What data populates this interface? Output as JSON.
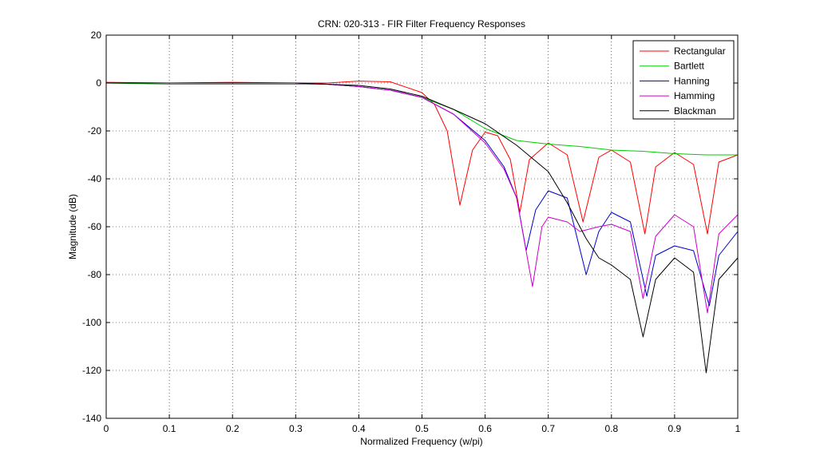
{
  "chart_data": {
    "type": "line",
    "title": "CRN: 020-313 - FIR Filter Frequency Responses",
    "xlabel": "Normalized Frequency (w/pi)",
    "ylabel": "Magnitude (dB)",
    "xlim": [
      0,
      1
    ],
    "ylim": [
      -140,
      20
    ],
    "xticks": [
      0,
      0.1,
      0.2,
      0.3,
      0.4,
      0.5,
      0.6,
      0.7,
      0.8,
      0.9,
      1
    ],
    "yticks": [
      20,
      0,
      -20,
      -40,
      -60,
      -80,
      -100,
      -120,
      -140
    ],
    "xtick_labels": [
      "0",
      "0.1",
      "0.2",
      "0.3",
      "0.4",
      "0.5",
      "0.6",
      "0.7",
      "0.8",
      "0.9",
      "1"
    ],
    "ytick_labels": [
      "20",
      "0",
      "-20",
      "-40",
      "-60",
      "-80",
      "-100",
      "-120",
      "-140"
    ],
    "grid": true,
    "legend_position": "top-right",
    "series": [
      {
        "name": "Rectangular",
        "color": "#ff0000",
        "points": [
          [
            0,
            0.3
          ],
          [
            0.1,
            0
          ],
          [
            0.2,
            0.3
          ],
          [
            0.3,
            0
          ],
          [
            0.35,
            0
          ],
          [
            0.4,
            0.8
          ],
          [
            0.45,
            0.5
          ],
          [
            0.5,
            -4
          ],
          [
            0.52,
            -9
          ],
          [
            0.54,
            -20
          ],
          [
            0.56,
            -51
          ],
          [
            0.58,
            -28
          ],
          [
            0.6,
            -20.5
          ],
          [
            0.62,
            -22
          ],
          [
            0.64,
            -32
          ],
          [
            0.655,
            -54
          ],
          [
            0.67,
            -32
          ],
          [
            0.7,
            -25
          ],
          [
            0.73,
            -30
          ],
          [
            0.755,
            -58
          ],
          [
            0.78,
            -31
          ],
          [
            0.8,
            -28
          ],
          [
            0.83,
            -33
          ],
          [
            0.853,
            -63
          ],
          [
            0.87,
            -35
          ],
          [
            0.9,
            -29
          ],
          [
            0.93,
            -34
          ],
          [
            0.952,
            -63
          ],
          [
            0.97,
            -33
          ],
          [
            1,
            -30
          ]
        ]
      },
      {
        "name": "Bartlett",
        "color": "#00cc00",
        "points": [
          [
            0,
            0
          ],
          [
            0.1,
            -0.5
          ],
          [
            0.2,
            -0.5
          ],
          [
            0.3,
            -0.5
          ],
          [
            0.35,
            -0.5
          ],
          [
            0.4,
            -1.5
          ],
          [
            0.45,
            -3
          ],
          [
            0.5,
            -6
          ],
          [
            0.55,
            -11
          ],
          [
            0.6,
            -19
          ],
          [
            0.65,
            -24
          ],
          [
            0.7,
            -25.5
          ],
          [
            0.75,
            -26.5
          ],
          [
            0.8,
            -28
          ],
          [
            0.85,
            -28.5
          ],
          [
            0.9,
            -29.5
          ],
          [
            0.95,
            -30
          ],
          [
            1,
            -30
          ]
        ]
      },
      {
        "name": "Hanning",
        "color": "#0000cc",
        "points": [
          [
            0,
            0
          ],
          [
            0.1,
            0
          ],
          [
            0.3,
            0
          ],
          [
            0.35,
            -0.5
          ],
          [
            0.4,
            -1.5
          ],
          [
            0.45,
            -3
          ],
          [
            0.5,
            -6
          ],
          [
            0.55,
            -13
          ],
          [
            0.6,
            -24
          ],
          [
            0.63,
            -35
          ],
          [
            0.65,
            -48
          ],
          [
            0.665,
            -70
          ],
          [
            0.68,
            -53
          ],
          [
            0.7,
            -45
          ],
          [
            0.73,
            -48
          ],
          [
            0.76,
            -80
          ],
          [
            0.78,
            -62
          ],
          [
            0.8,
            -54
          ],
          [
            0.83,
            -58
          ],
          [
            0.856,
            -89
          ],
          [
            0.87,
            -72
          ],
          [
            0.9,
            -68
          ],
          [
            0.93,
            -70
          ],
          [
            0.955,
            -93
          ],
          [
            0.97,
            -72
          ],
          [
            1,
            -62
          ]
        ]
      },
      {
        "name": "Hamming",
        "color": "#cc00cc",
        "points": [
          [
            0,
            0
          ],
          [
            0.1,
            0
          ],
          [
            0.3,
            0
          ],
          [
            0.35,
            -0.5
          ],
          [
            0.4,
            -1.5
          ],
          [
            0.45,
            -3
          ],
          [
            0.5,
            -6
          ],
          [
            0.55,
            -13
          ],
          [
            0.6,
            -25
          ],
          [
            0.63,
            -36
          ],
          [
            0.65,
            -48
          ],
          [
            0.675,
            -85
          ],
          [
            0.69,
            -60
          ],
          [
            0.7,
            -56
          ],
          [
            0.73,
            -58
          ],
          [
            0.75,
            -62
          ],
          [
            0.78,
            -60
          ],
          [
            0.8,
            -59
          ],
          [
            0.83,
            -62
          ],
          [
            0.85,
            -90
          ],
          [
            0.87,
            -64
          ],
          [
            0.9,
            -55
          ],
          [
            0.93,
            -60
          ],
          [
            0.952,
            -96
          ],
          [
            0.97,
            -63
          ],
          [
            1,
            -55
          ]
        ]
      },
      {
        "name": "Blackman",
        "color": "#000000",
        "points": [
          [
            0,
            0
          ],
          [
            0.1,
            0
          ],
          [
            0.3,
            0
          ],
          [
            0.35,
            -0.5
          ],
          [
            0.4,
            -1
          ],
          [
            0.45,
            -2.5
          ],
          [
            0.5,
            -5.5
          ],
          [
            0.55,
            -11
          ],
          [
            0.6,
            -17
          ],
          [
            0.65,
            -26
          ],
          [
            0.7,
            -37
          ],
          [
            0.73,
            -50
          ],
          [
            0.76,
            -65
          ],
          [
            0.78,
            -73
          ],
          [
            0.8,
            -76
          ],
          [
            0.83,
            -82
          ],
          [
            0.85,
            -106
          ],
          [
            0.87,
            -82
          ],
          [
            0.9,
            -73
          ],
          [
            0.93,
            -79
          ],
          [
            0.95,
            -121
          ],
          [
            0.97,
            -82
          ],
          [
            1,
            -73
          ]
        ]
      }
    ]
  }
}
